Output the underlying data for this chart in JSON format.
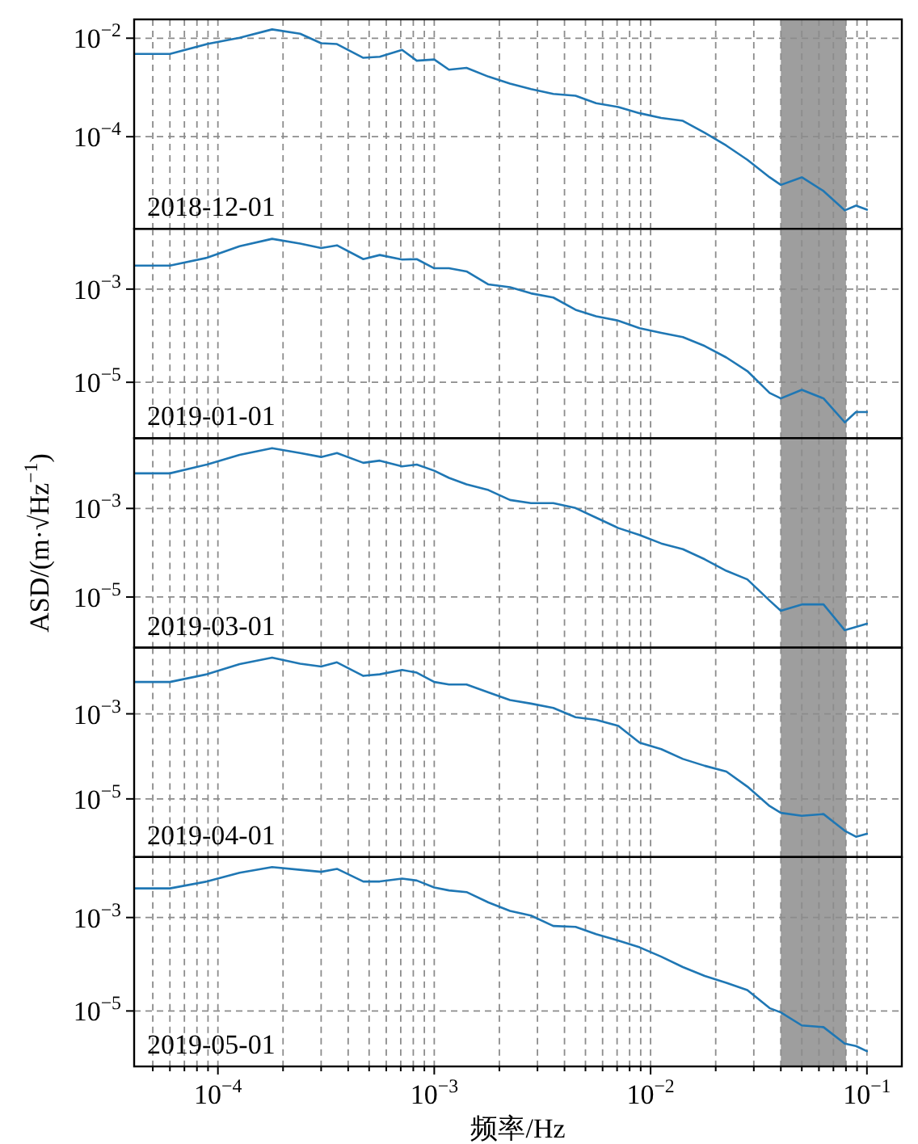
{
  "chart_data": [
    {
      "type": "line",
      "log": "xy",
      "grid": true,
      "tick_labels": "y",
      "xlim": [
        4.1e-05,
        0.145
      ],
      "ylim": [
        1.35e-06,
        0.0241
      ],
      "xticks": [
        {
          "value": 5e-05,
          "label": null
        },
        {
          "value": 6e-05,
          "label": null
        },
        {
          "value": 7e-05,
          "label": null
        },
        {
          "value": 8e-05,
          "label": null
        },
        {
          "value": 9e-05,
          "label": null
        },
        {
          "value": 0.0001,
          "label": null
        },
        {
          "value": 0.0002,
          "label": null
        },
        {
          "value": 0.0003,
          "label": null
        },
        {
          "value": 0.0004,
          "label": null
        },
        {
          "value": 0.0005,
          "label": null
        },
        {
          "value": 0.0006,
          "label": null
        },
        {
          "value": 0.0007,
          "label": null
        },
        {
          "value": 0.0008,
          "label": null
        },
        {
          "value": 0.0009,
          "label": null
        },
        {
          "value": 0.001,
          "label": null
        },
        {
          "value": 0.002,
          "label": null
        },
        {
          "value": 0.003,
          "label": null
        },
        {
          "value": 0.004,
          "label": null
        },
        {
          "value": 0.005,
          "label": null
        },
        {
          "value": 0.006,
          "label": null
        },
        {
          "value": 0.007,
          "label": null
        },
        {
          "value": 0.008,
          "label": null
        },
        {
          "value": 0.009,
          "label": null
        },
        {
          "value": 0.01,
          "label": null
        },
        {
          "value": 0.02,
          "label": null
        },
        {
          "value": 0.03,
          "label": null
        },
        {
          "value": 0.04,
          "label": null
        },
        {
          "value": 0.05,
          "label": null
        },
        {
          "value": 0.06,
          "label": null
        },
        {
          "value": 0.07,
          "label": null
        },
        {
          "value": 0.08,
          "label": null
        },
        {
          "value": 0.09,
          "label": null
        },
        {
          "value": 0.1,
          "label": null
        }
      ],
      "yticks": [
        {
          "value": 0.01,
          "label": "10$^{−2}$"
        },
        {
          "value": 0.0001,
          "label": "10$^{−4}$"
        }
      ],
      "bands": [
        {
          "axis": "x",
          "from": 0.04,
          "to": 0.08,
          "color": "#9e9e9e"
        }
      ],
      "annotations": [
        "2018-12-01"
      ],
      "x": [
        4.14e-05,
        6e-05,
        8.9e-05,
        0.000126,
        0.000178,
        0.00024,
        0.0003,
        0.000355,
        0.00047,
        0.00056,
        0.00071,
        0.00083,
        0.001,
        0.00117,
        0.00141,
        0.00178,
        0.00224,
        0.0028,
        0.00355,
        0.0045,
        0.0056,
        0.0071,
        0.0089,
        0.0112,
        0.0141,
        0.0178,
        0.0224,
        0.028,
        0.0355,
        0.04,
        0.05,
        0.063,
        0.079,
        0.089,
        0.1
      ],
      "series": [
        {
          "color": "#1f77b4",
          "values": [
            0.0048,
            0.0048,
            0.0076,
            0.0102,
            0.0151,
            0.0123,
            0.0079,
            0.0076,
            0.004,
            0.0042,
            0.0058,
            0.0035,
            0.0037,
            0.0023,
            0.0025,
            0.00166,
            0.0012,
            0.00093,
            0.00074,
            0.00068,
            0.00048,
            0.0004,
            0.0003,
            0.00024,
            0.00021,
            0.00012,
            6.6e-05,
            3.4e-05,
            1.5e-05,
            1.05e-05,
            1.5e-05,
            7.9e-06,
            3.2e-06,
            4e-06,
            3.3e-06
          ]
        }
      ]
    },
    {
      "type": "line",
      "log": "xy",
      "grid": true,
      "tick_labels": "y",
      "xlim": [
        4.1e-05,
        0.145
      ],
      "ylim": [
        6.3e-07,
        0.0197
      ],
      "xticks": [
        {
          "value": 5e-05,
          "label": null
        },
        {
          "value": 6e-05,
          "label": null
        },
        {
          "value": 7e-05,
          "label": null
        },
        {
          "value": 8e-05,
          "label": null
        },
        {
          "value": 9e-05,
          "label": null
        },
        {
          "value": 0.0001,
          "label": null
        },
        {
          "value": 0.0002,
          "label": null
        },
        {
          "value": 0.0003,
          "label": null
        },
        {
          "value": 0.0004,
          "label": null
        },
        {
          "value": 0.0005,
          "label": null
        },
        {
          "value": 0.0006,
          "label": null
        },
        {
          "value": 0.0007,
          "label": null
        },
        {
          "value": 0.0008,
          "label": null
        },
        {
          "value": 0.0009,
          "label": null
        },
        {
          "value": 0.001,
          "label": null
        },
        {
          "value": 0.002,
          "label": null
        },
        {
          "value": 0.003,
          "label": null
        },
        {
          "value": 0.004,
          "label": null
        },
        {
          "value": 0.005,
          "label": null
        },
        {
          "value": 0.006,
          "label": null
        },
        {
          "value": 0.007,
          "label": null
        },
        {
          "value": 0.008,
          "label": null
        },
        {
          "value": 0.009,
          "label": null
        },
        {
          "value": 0.01,
          "label": null
        },
        {
          "value": 0.02,
          "label": null
        },
        {
          "value": 0.03,
          "label": null
        },
        {
          "value": 0.04,
          "label": null
        },
        {
          "value": 0.05,
          "label": null
        },
        {
          "value": 0.06,
          "label": null
        },
        {
          "value": 0.07,
          "label": null
        },
        {
          "value": 0.08,
          "label": null
        },
        {
          "value": 0.09,
          "label": null
        },
        {
          "value": 0.1,
          "label": null
        }
      ],
      "yticks": [
        {
          "value": 0.001,
          "label": "10$^{−3}$"
        },
        {
          "value": 1e-05,
          "label": "10$^{−5}$"
        }
      ],
      "bands": [
        {
          "axis": "x",
          "from": 0.04,
          "to": 0.08,
          "color": "#9e9e9e"
        }
      ],
      "annotations": [
        "2019-01-01"
      ],
      "x": [
        4.14e-05,
        6e-05,
        8.9e-05,
        0.000126,
        0.000178,
        0.00024,
        0.0003,
        0.000355,
        0.00047,
        0.00056,
        0.00071,
        0.00083,
        0.001,
        0.00117,
        0.00141,
        0.00178,
        0.00224,
        0.0028,
        0.00355,
        0.0045,
        0.0056,
        0.0071,
        0.0089,
        0.0112,
        0.0141,
        0.0178,
        0.0224,
        0.028,
        0.0355,
        0.04,
        0.05,
        0.063,
        0.079,
        0.089,
        0.1
      ],
      "series": [
        {
          "color": "#1f77b4",
          "values": [
            0.0032,
            0.0032,
            0.0047,
            0.0083,
            0.012,
            0.0095,
            0.0076,
            0.0087,
            0.0044,
            0.0054,
            0.0043,
            0.0044,
            0.0028,
            0.0028,
            0.0024,
            0.00126,
            0.0011,
            0.00081,
            0.00066,
            0.00036,
            0.00026,
            0.00021,
            0.000145,
            0.000115,
            9.3e-05,
            6e-05,
            3.4e-05,
            1.74e-05,
            5.9e-06,
            4.5e-06,
            6.9e-06,
            4.5e-06,
            1.38e-06,
            2.3e-06,
            2.3e-06
          ]
        }
      ]
    },
    {
      "type": "line",
      "log": "xy",
      "grid": true,
      "tick_labels": "y",
      "xlim": [
        4.1e-05,
        0.145
      ],
      "ylim": [
        7.2e-07,
        0.0385
      ],
      "ylabel": "ASD/(m·√Hz$^{−1}$)",
      "xticks": [
        {
          "value": 5e-05,
          "label": null
        },
        {
          "value": 6e-05,
          "label": null
        },
        {
          "value": 7e-05,
          "label": null
        },
        {
          "value": 8e-05,
          "label": null
        },
        {
          "value": 9e-05,
          "label": null
        },
        {
          "value": 0.0001,
          "label": null
        },
        {
          "value": 0.0002,
          "label": null
        },
        {
          "value": 0.0003,
          "label": null
        },
        {
          "value": 0.0004,
          "label": null
        },
        {
          "value": 0.0005,
          "label": null
        },
        {
          "value": 0.0006,
          "label": null
        },
        {
          "value": 0.0007,
          "label": null
        },
        {
          "value": 0.0008,
          "label": null
        },
        {
          "value": 0.0009,
          "label": null
        },
        {
          "value": 0.001,
          "label": null
        },
        {
          "value": 0.002,
          "label": null
        },
        {
          "value": 0.003,
          "label": null
        },
        {
          "value": 0.004,
          "label": null
        },
        {
          "value": 0.005,
          "label": null
        },
        {
          "value": 0.006,
          "label": null
        },
        {
          "value": 0.007,
          "label": null
        },
        {
          "value": 0.008,
          "label": null
        },
        {
          "value": 0.009,
          "label": null
        },
        {
          "value": 0.01,
          "label": null
        },
        {
          "value": 0.02,
          "label": null
        },
        {
          "value": 0.03,
          "label": null
        },
        {
          "value": 0.04,
          "label": null
        },
        {
          "value": 0.05,
          "label": null
        },
        {
          "value": 0.06,
          "label": null
        },
        {
          "value": 0.07,
          "label": null
        },
        {
          "value": 0.08,
          "label": null
        },
        {
          "value": 0.09,
          "label": null
        },
        {
          "value": 0.1,
          "label": null
        }
      ],
      "yticks": [
        {
          "value": 0.001,
          "label": "10$^{−3}$"
        },
        {
          "value": 1e-05,
          "label": "10$^{−5}$"
        }
      ],
      "bands": [
        {
          "axis": "x",
          "from": 0.04,
          "to": 0.08,
          "color": "#9e9e9e"
        }
      ],
      "annotations": [
        "2019-03-01"
      ],
      "x": [
        4.14e-05,
        6e-05,
        8.9e-05,
        0.000126,
        0.000178,
        0.00024,
        0.0003,
        0.000355,
        0.00047,
        0.00056,
        0.00071,
        0.00083,
        0.001,
        0.00117,
        0.00141,
        0.00178,
        0.00224,
        0.0028,
        0.00355,
        0.0045,
        0.0056,
        0.0071,
        0.0089,
        0.0112,
        0.0141,
        0.0178,
        0.0224,
        0.028,
        0.0355,
        0.04,
        0.05,
        0.063,
        0.079,
        0.089,
        0.1
      ],
      "series": [
        {
          "color": "#1f77b4",
          "values": [
            0.0062,
            0.0062,
            0.0098,
            0.0162,
            0.023,
            0.0178,
            0.0145,
            0.0178,
            0.0107,
            0.012,
            0.0089,
            0.0098,
            0.0071,
            0.0049,
            0.0035,
            0.0026,
            0.00155,
            0.00132,
            0.00132,
            0.00102,
            0.00062,
            0.00036,
            0.00025,
            0.000162,
            0.00012,
            7.1e-05,
            3.9e-05,
            2.5e-05,
            8.3e-06,
            4.9e-06,
            6.8e-06,
            6.8e-06,
            1.78e-06,
            2.1e-06,
            2.5e-06
          ]
        }
      ]
    },
    {
      "type": "line",
      "log": "xy",
      "grid": true,
      "tick_labels": "y",
      "xlim": [
        4.1e-05,
        0.145
      ],
      "ylim": [
        4.3e-07,
        0.036
      ],
      "xticks": [
        {
          "value": 5e-05,
          "label": null
        },
        {
          "value": 6e-05,
          "label": null
        },
        {
          "value": 7e-05,
          "label": null
        },
        {
          "value": 8e-05,
          "label": null
        },
        {
          "value": 9e-05,
          "label": null
        },
        {
          "value": 0.0001,
          "label": null
        },
        {
          "value": 0.0002,
          "label": null
        },
        {
          "value": 0.0003,
          "label": null
        },
        {
          "value": 0.0004,
          "label": null
        },
        {
          "value": 0.0005,
          "label": null
        },
        {
          "value": 0.0006,
          "label": null
        },
        {
          "value": 0.0007,
          "label": null
        },
        {
          "value": 0.0008,
          "label": null
        },
        {
          "value": 0.0009,
          "label": null
        },
        {
          "value": 0.001,
          "label": null
        },
        {
          "value": 0.002,
          "label": null
        },
        {
          "value": 0.003,
          "label": null
        },
        {
          "value": 0.004,
          "label": null
        },
        {
          "value": 0.005,
          "label": null
        },
        {
          "value": 0.006,
          "label": null
        },
        {
          "value": 0.007,
          "label": null
        },
        {
          "value": 0.008,
          "label": null
        },
        {
          "value": 0.009,
          "label": null
        },
        {
          "value": 0.01,
          "label": null
        },
        {
          "value": 0.02,
          "label": null
        },
        {
          "value": 0.03,
          "label": null
        },
        {
          "value": 0.04,
          "label": null
        },
        {
          "value": 0.05,
          "label": null
        },
        {
          "value": 0.06,
          "label": null
        },
        {
          "value": 0.07,
          "label": null
        },
        {
          "value": 0.08,
          "label": null
        },
        {
          "value": 0.09,
          "label": null
        },
        {
          "value": 0.1,
          "label": null
        }
      ],
      "yticks": [
        {
          "value": 0.001,
          "label": "10$^{−3}$"
        },
        {
          "value": 1e-05,
          "label": "10$^{−5}$"
        }
      ],
      "bands": [
        {
          "axis": "x",
          "from": 0.04,
          "to": 0.08,
          "color": "#9e9e9e"
        }
      ],
      "annotations": [
        "2019-04-01"
      ],
      "x": [
        4.14e-05,
        6e-05,
        8.9e-05,
        0.000126,
        0.000178,
        0.00024,
        0.0003,
        0.000355,
        0.00047,
        0.00056,
        0.00071,
        0.00083,
        0.001,
        0.00117,
        0.00141,
        0.00178,
        0.00224,
        0.0028,
        0.00355,
        0.0045,
        0.0056,
        0.0071,
        0.0089,
        0.0112,
        0.0141,
        0.0178,
        0.0224,
        0.028,
        0.0355,
        0.04,
        0.05,
        0.063,
        0.079,
        0.089,
        0.1
      ],
      "series": [
        {
          "color": "#1f77b4",
          "values": [
            0.0056,
            0.0056,
            0.0085,
            0.0148,
            0.021,
            0.0151,
            0.0129,
            0.0162,
            0.0078,
            0.0085,
            0.0107,
            0.0093,
            0.0056,
            0.0049,
            0.0049,
            0.0032,
            0.0021,
            0.00174,
            0.00138,
            0.00083,
            0.00072,
            0.00052,
            0.00021,
            0.000148,
            8.7e-05,
            6e-05,
            4.4e-05,
            1.95e-05,
            6.8e-06,
            4.7e-06,
            4e-06,
            4.4e-06,
            1.78e-06,
            1.29e-06,
            1.51e-06
          ]
        }
      ]
    },
    {
      "type": "line",
      "log": "xy",
      "grid": true,
      "xlim": [
        4.1e-05,
        0.145
      ],
      "ylim": [
        6.5e-07,
        0.0197
      ],
      "xlabel": "频率/Hz",
      "xticks": [
        {
          "value": 5e-05,
          "label": null
        },
        {
          "value": 6e-05,
          "label": null
        },
        {
          "value": 7e-05,
          "label": null
        },
        {
          "value": 8e-05,
          "label": null
        },
        {
          "value": 9e-05,
          "label": null
        },
        {
          "value": 0.0001,
          "label": "10$^{−4}$"
        },
        {
          "value": 0.0002,
          "label": null
        },
        {
          "value": 0.0003,
          "label": null
        },
        {
          "value": 0.0004,
          "label": null
        },
        {
          "value": 0.0005,
          "label": null
        },
        {
          "value": 0.0006,
          "label": null
        },
        {
          "value": 0.0007,
          "label": null
        },
        {
          "value": 0.0008,
          "label": null
        },
        {
          "value": 0.0009,
          "label": null
        },
        {
          "value": 0.001,
          "label": "10$^{−3}$"
        },
        {
          "value": 0.002,
          "label": null
        },
        {
          "value": 0.003,
          "label": null
        },
        {
          "value": 0.004,
          "label": null
        },
        {
          "value": 0.005,
          "label": null
        },
        {
          "value": 0.006,
          "label": null
        },
        {
          "value": 0.007,
          "label": null
        },
        {
          "value": 0.008,
          "label": null
        },
        {
          "value": 0.009,
          "label": null
        },
        {
          "value": 0.01,
          "label": "10$^{−2}$"
        },
        {
          "value": 0.02,
          "label": null
        },
        {
          "value": 0.03,
          "label": null
        },
        {
          "value": 0.04,
          "label": null
        },
        {
          "value": 0.05,
          "label": null
        },
        {
          "value": 0.06,
          "label": null
        },
        {
          "value": 0.07,
          "label": null
        },
        {
          "value": 0.08,
          "label": null
        },
        {
          "value": 0.09,
          "label": null
        },
        {
          "value": 0.1,
          "label": "10$^{−1}$"
        }
      ],
      "yticks": [
        {
          "value": 0.001,
          "label": "10$^{−3}$"
        },
        {
          "value": 1e-05,
          "label": "10$^{−5}$"
        }
      ],
      "bands": [
        {
          "axis": "x",
          "from": 0.04,
          "to": 0.08,
          "color": "#9e9e9e"
        }
      ],
      "annotations": [
        "2019-05-01"
      ],
      "x": [
        4.14e-05,
        6e-05,
        8.9e-05,
        0.000126,
        0.000178,
        0.00024,
        0.0003,
        0.000355,
        0.00047,
        0.00056,
        0.00071,
        0.00083,
        0.001,
        0.00117,
        0.00141,
        0.00178,
        0.00224,
        0.0028,
        0.00355,
        0.0045,
        0.0056,
        0.0071,
        0.0089,
        0.0112,
        0.0141,
        0.0178,
        0.0224,
        0.028,
        0.0355,
        0.04,
        0.05,
        0.063,
        0.079,
        0.089,
        0.1
      ],
      "series": [
        {
          "color": "#1f77b4",
          "values": [
            0.0042,
            0.0042,
            0.0059,
            0.0091,
            0.012,
            0.0105,
            0.0095,
            0.011,
            0.0059,
            0.0059,
            0.0068,
            0.0062,
            0.0044,
            0.0038,
            0.0035,
            0.0021,
            0.00138,
            0.0011,
            0.00066,
            0.00063,
            0.00044,
            0.00032,
            0.00023,
            0.000145,
            8.7e-05,
            5.6e-05,
            4e-05,
            2.8e-05,
            1.15e-05,
            9.3e-06,
            4.9e-06,
            4.5e-06,
            2e-06,
            1.78e-06,
            1.38e-06
          ]
        }
      ]
    }
  ]
}
